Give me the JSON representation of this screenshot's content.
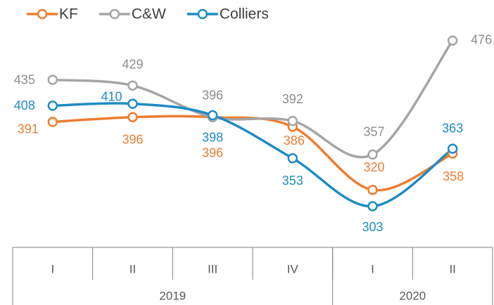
{
  "chart_data": {
    "type": "line",
    "categories": [
      "I",
      "II",
      "III",
      "IV",
      "I",
      "II"
    ],
    "groups": [
      {
        "label": "2019",
        "count": 4
      },
      {
        "label": "2020",
        "count": 2
      }
    ],
    "series": [
      {
        "name": "KF",
        "color": "#ED7D31",
        "values": [
          391,
          396,
          396,
          386,
          320,
          358
        ]
      },
      {
        "name": "C&W",
        "color": "#A5A5A5",
        "values": [
          435,
          429,
          396,
          392,
          357,
          476
        ]
      },
      {
        "name": "Colliers",
        "color": "#1E8BC3",
        "values": [
          408,
          410,
          398,
          353,
          303,
          363
        ]
      }
    ],
    "ylim": [
      260,
      500
    ],
    "smooth": true,
    "legend": "top"
  }
}
